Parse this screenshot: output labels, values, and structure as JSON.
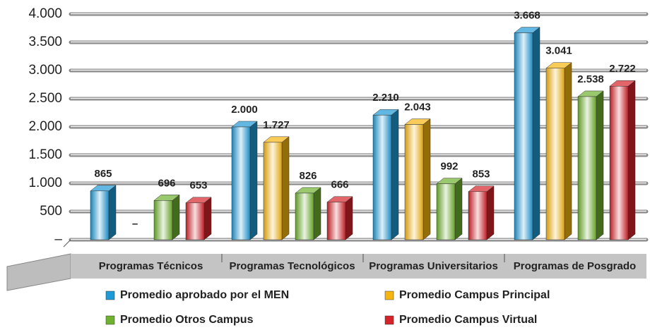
{
  "chart_data": {
    "type": "bar3d",
    "categories": [
      "Programas Técnicos",
      "Programas Tecnológicos",
      "Programas Universitarios",
      "Programas de Posgrado"
    ],
    "series": [
      {
        "name": "Promedio aprobado por el MEN",
        "color": "#1e9ad6",
        "values": [
          865,
          2000,
          2210,
          3668
        ],
        "value_labels": [
          "865",
          "2.000",
          "2.210",
          "3.668"
        ]
      },
      {
        "name": "Promedio Campus Principal",
        "color": "#f7b512",
        "values": [
          null,
          1727,
          2043,
          3041
        ],
        "value_labels": [
          "–",
          "1.727",
          "2.043",
          "3.041"
        ]
      },
      {
        "name": "Promedio Otros Campus",
        "color": "#6fb22e",
        "values": [
          696,
          826,
          992,
          2538
        ],
        "value_labels": [
          "696",
          "826",
          "992",
          "2.538"
        ]
      },
      {
        "name": "Promedio Campus Virtual",
        "color": "#d6232a",
        "values": [
          653,
          666,
          853,
          2722
        ],
        "value_labels": [
          "653",
          "666",
          "853",
          "2.722"
        ]
      }
    ],
    "ylim": [
      0,
      4000
    ],
    "yticks": [
      {
        "value": 0,
        "label": "–"
      },
      500,
      {
        "value": 1000,
        "label": "1.000"
      },
      {
        "value": 1500,
        "label": "1.500"
      },
      {
        "value": 2000,
        "label": "2.000"
      },
      {
        "value": 2500,
        "label": "2.500"
      },
      {
        "value": 3000,
        "label": "3.000"
      },
      {
        "value": 3500,
        "label": "3.500"
      },
      {
        "value": 4000,
        "label": "4.000"
      }
    ],
    "grid": true
  }
}
